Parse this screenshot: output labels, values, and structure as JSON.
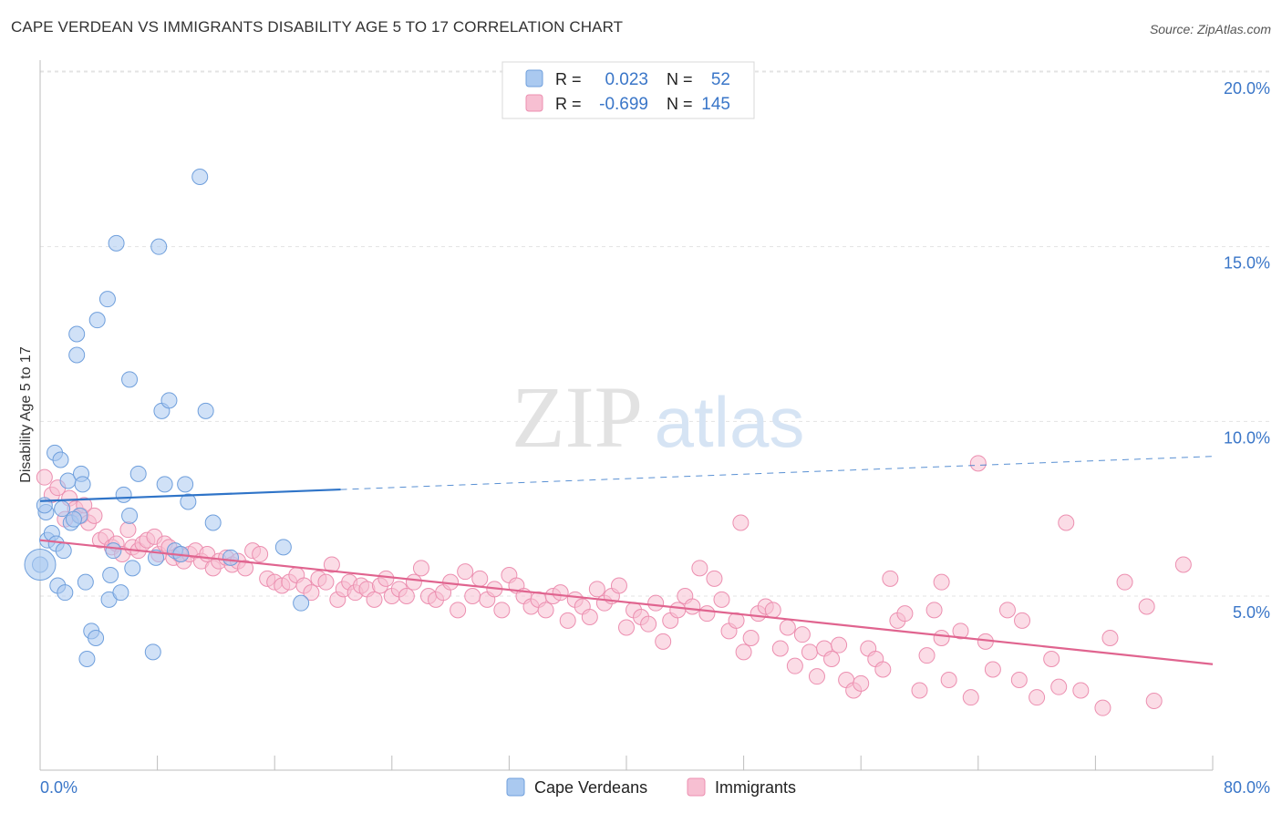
{
  "title": "CAPE VERDEAN VS IMMIGRANTS DISABILITY AGE 5 TO 17 CORRELATION CHART",
  "source": "Source: ZipAtlas.com",
  "watermark": {
    "zip": "ZIP",
    "atlas": "atlas"
  },
  "legend_box": {
    "rows": [
      {
        "r_label": "R = ",
        "r_value": "0.023",
        "n_label": "N = ",
        "n_value": "52",
        "color": "#aac9f0",
        "stroke": "#6f9fdc"
      },
      {
        "r_label": "R = ",
        "r_value": "-0.699",
        "n_label": "N = ",
        "n_value": "145",
        "color": "#f7bfd2",
        "stroke": "#ec8fb0"
      }
    ]
  },
  "bottom_legend": [
    {
      "label": "Cape Verdeans",
      "color": "#aac9f0",
      "stroke": "#6f9fdc"
    },
    {
      "label": "Immigrants",
      "color": "#f7bfd2",
      "stroke": "#ec8fb0"
    }
  ],
  "chart_data": {
    "type": "scatter",
    "title": "CAPE VERDEAN VS IMMIGRANTS DISABILITY AGE 5 TO 17 CORRELATION CHART",
    "xlabel": "",
    "ylabel": "Disability Age 5 to 17",
    "xlim": [
      0,
      80
    ],
    "ylim": [
      0,
      21
    ],
    "x_tick_labels": [
      "0.0%",
      "80.0%"
    ],
    "y_ticks": [
      5,
      10,
      15,
      20
    ],
    "y_tick_labels": [
      "5.0%",
      "10.0%",
      "15.0%",
      "20.0%"
    ],
    "grid": true,
    "legend": "top-center",
    "series": [
      {
        "name": "Cape Verdeans",
        "color": "#aac9f0",
        "stroke": "#6f9fdc",
        "trend": {
          "x0": 0,
          "y0": 7.72,
          "x1": 20.5,
          "y1": 8.05,
          "dash_to": 80,
          "dash_y": 9.0,
          "color": "#2f74c8"
        },
        "points": [
          [
            0.0,
            5.9
          ],
          [
            0.4,
            7.4
          ],
          [
            0.5,
            6.6
          ],
          [
            0.8,
            6.8
          ],
          [
            1.0,
            9.1
          ],
          [
            1.1,
            6.5
          ],
          [
            1.2,
            5.3
          ],
          [
            1.4,
            8.9
          ],
          [
            1.6,
            6.3
          ],
          [
            1.7,
            5.1
          ],
          [
            1.9,
            8.3
          ],
          [
            2.1,
            7.1
          ],
          [
            2.5,
            12.5
          ],
          [
            2.5,
            11.9
          ],
          [
            2.7,
            7.3
          ],
          [
            2.8,
            8.5
          ],
          [
            2.9,
            8.2
          ],
          [
            3.1,
            5.4
          ],
          [
            3.2,
            3.2
          ],
          [
            3.5,
            4.0
          ],
          [
            3.8,
            3.8
          ],
          [
            3.9,
            12.9
          ],
          [
            4.6,
            13.5
          ],
          [
            4.7,
            4.9
          ],
          [
            4.8,
            5.6
          ],
          [
            5.0,
            6.3
          ],
          [
            5.2,
            15.1
          ],
          [
            5.5,
            5.1
          ],
          [
            5.7,
            7.9
          ],
          [
            6.1,
            7.3
          ],
          [
            6.1,
            11.2
          ],
          [
            6.3,
            5.8
          ],
          [
            6.7,
            8.5
          ],
          [
            7.7,
            3.4
          ],
          [
            7.9,
            6.1
          ],
          [
            8.1,
            15.0
          ],
          [
            8.3,
            10.3
          ],
          [
            8.5,
            8.2
          ],
          [
            8.8,
            10.6
          ],
          [
            9.2,
            6.3
          ],
          [
            9.6,
            6.2
          ],
          [
            9.9,
            8.2
          ],
          [
            10.1,
            7.7
          ],
          [
            10.9,
            17.0
          ],
          [
            11.3,
            10.3
          ],
          [
            11.8,
            7.1
          ],
          [
            13.0,
            6.1
          ],
          [
            16.6,
            6.4
          ],
          [
            17.8,
            4.8
          ],
          [
            0.3,
            7.6
          ],
          [
            1.5,
            7.5
          ],
          [
            2.3,
            7.2
          ]
        ]
      },
      {
        "name": "Immigrants",
        "color": "#f7bfd2",
        "stroke": "#ec8fb0",
        "trend": {
          "x0": 0,
          "y0": 6.6,
          "x1": 80,
          "y1": 3.05,
          "color": "#e0648f"
        },
        "points": [
          [
            0.3,
            8.4
          ],
          [
            0.8,
            7.9
          ],
          [
            1.2,
            8.1
          ],
          [
            1.7,
            7.2
          ],
          [
            2.0,
            7.8
          ],
          [
            2.4,
            7.5
          ],
          [
            2.8,
            7.3
          ],
          [
            3.0,
            7.6
          ],
          [
            3.3,
            7.1
          ],
          [
            3.7,
            7.3
          ],
          [
            4.1,
            6.6
          ],
          [
            4.5,
            6.7
          ],
          [
            4.9,
            6.4
          ],
          [
            5.2,
            6.5
          ],
          [
            5.6,
            6.2
          ],
          [
            6.0,
            6.9
          ],
          [
            6.3,
            6.4
          ],
          [
            6.7,
            6.3
          ],
          [
            7.0,
            6.5
          ],
          [
            7.3,
            6.6
          ],
          [
            7.8,
            6.7
          ],
          [
            8.1,
            6.2
          ],
          [
            8.5,
            6.5
          ],
          [
            8.8,
            6.4
          ],
          [
            9.1,
            6.1
          ],
          [
            9.5,
            6.2
          ],
          [
            9.8,
            6.0
          ],
          [
            10.2,
            6.2
          ],
          [
            10.6,
            6.3
          ],
          [
            11.0,
            6.0
          ],
          [
            11.4,
            6.2
          ],
          [
            11.8,
            5.8
          ],
          [
            12.2,
            6.0
          ],
          [
            12.7,
            6.1
          ],
          [
            13.1,
            5.9
          ],
          [
            13.5,
            6.0
          ],
          [
            14.0,
            5.8
          ],
          [
            14.5,
            6.3
          ],
          [
            15.0,
            6.2
          ],
          [
            15.5,
            5.5
          ],
          [
            16.0,
            5.4
          ],
          [
            16.5,
            5.3
          ],
          [
            17.0,
            5.4
          ],
          [
            17.5,
            5.6
          ],
          [
            18.0,
            5.3
          ],
          [
            18.5,
            5.1
          ],
          [
            19.0,
            5.5
          ],
          [
            19.5,
            5.4
          ],
          [
            19.9,
            5.9
          ],
          [
            20.3,
            4.9
          ],
          [
            20.7,
            5.2
          ],
          [
            21.1,
            5.4
          ],
          [
            21.5,
            5.1
          ],
          [
            21.9,
            5.3
          ],
          [
            22.3,
            5.2
          ],
          [
            22.8,
            4.9
          ],
          [
            23.2,
            5.3
          ],
          [
            23.6,
            5.5
          ],
          [
            24.0,
            5.0
          ],
          [
            24.5,
            5.2
          ],
          [
            25.0,
            5.0
          ],
          [
            25.5,
            5.4
          ],
          [
            26.0,
            5.8
          ],
          [
            26.5,
            5.0
          ],
          [
            27.0,
            4.9
          ],
          [
            27.5,
            5.1
          ],
          [
            28.0,
            5.4
          ],
          [
            28.5,
            4.6
          ],
          [
            29.0,
            5.7
          ],
          [
            29.5,
            5.0
          ],
          [
            30.0,
            5.5
          ],
          [
            30.5,
            4.9
          ],
          [
            31.0,
            5.2
          ],
          [
            31.5,
            4.6
          ],
          [
            32.0,
            5.6
          ],
          [
            32.5,
            5.3
          ],
          [
            33.0,
            5.0
          ],
          [
            33.5,
            4.7
          ],
          [
            34.0,
            4.9
          ],
          [
            34.5,
            4.6
          ],
          [
            35.0,
            5.0
          ],
          [
            35.5,
            5.1
          ],
          [
            36.0,
            4.3
          ],
          [
            36.5,
            4.9
          ],
          [
            37.0,
            4.7
          ],
          [
            37.5,
            4.4
          ],
          [
            38.0,
            5.2
          ],
          [
            38.5,
            4.8
          ],
          [
            39.0,
            5.0
          ],
          [
            39.5,
            5.3
          ],
          [
            40.0,
            4.1
          ],
          [
            40.5,
            4.6
          ],
          [
            41.0,
            4.4
          ],
          [
            41.5,
            4.2
          ],
          [
            42.0,
            4.8
          ],
          [
            42.5,
            3.7
          ],
          [
            43.0,
            4.3
          ],
          [
            43.5,
            4.6
          ],
          [
            44.0,
            5.0
          ],
          [
            44.5,
            4.7
          ],
          [
            45.0,
            5.8
          ],
          [
            45.5,
            4.5
          ],
          [
            46.0,
            5.5
          ],
          [
            46.5,
            4.9
          ],
          [
            47.0,
            4.0
          ],
          [
            47.5,
            4.3
          ],
          [
            48.0,
            3.4
          ],
          [
            48.5,
            3.8
          ],
          [
            49.0,
            4.5
          ],
          [
            49.5,
            4.7
          ],
          [
            50.0,
            4.6
          ],
          [
            50.5,
            3.5
          ],
          [
            51.0,
            4.1
          ],
          [
            51.5,
            3.0
          ],
          [
            52.0,
            3.9
          ],
          [
            52.5,
            3.4
          ],
          [
            53.0,
            2.7
          ],
          [
            53.5,
            3.5
          ],
          [
            54.0,
            3.2
          ],
          [
            54.5,
            3.6
          ],
          [
            55.0,
            2.6
          ],
          [
            55.5,
            2.3
          ],
          [
            56.0,
            2.5
          ],
          [
            56.5,
            3.5
          ],
          [
            57.0,
            3.2
          ],
          [
            57.5,
            2.9
          ],
          [
            58.0,
            5.5
          ],
          [
            58.5,
            4.3
          ],
          [
            59.0,
            4.5
          ],
          [
            60.0,
            2.3
          ],
          [
            60.5,
            3.3
          ],
          [
            61.0,
            4.6
          ],
          [
            61.5,
            3.8
          ],
          [
            62.0,
            2.6
          ],
          [
            62.8,
            4.0
          ],
          [
            63.5,
            2.1
          ],
          [
            64.0,
            8.8
          ],
          [
            64.5,
            3.7
          ],
          [
            65.0,
            2.9
          ],
          [
            66.0,
            4.6
          ],
          [
            67.0,
            4.3
          ],
          [
            68.0,
            2.1
          ],
          [
            69.0,
            3.2
          ],
          [
            69.5,
            2.4
          ],
          [
            70.0,
            7.1
          ],
          [
            71.0,
            2.3
          ],
          [
            72.5,
            1.8
          ],
          [
            73.0,
            3.8
          ],
          [
            74.0,
            5.4
          ],
          [
            75.5,
            4.7
          ],
          [
            76.0,
            2.0
          ],
          [
            78.0,
            5.9
          ],
          [
            47.8,
            7.1
          ],
          [
            61.5,
            5.4
          ],
          [
            66.8,
            2.6
          ]
        ]
      }
    ]
  }
}
